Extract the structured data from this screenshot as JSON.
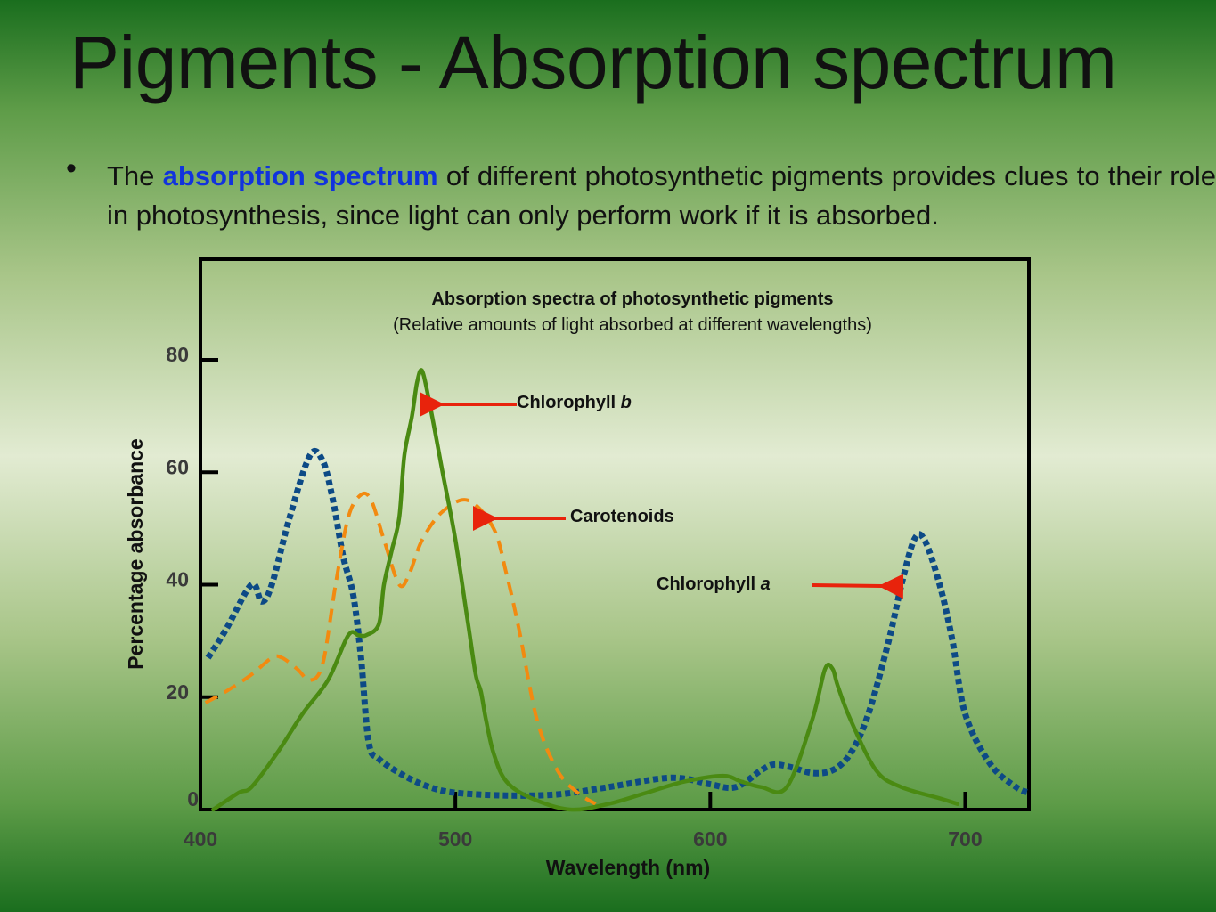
{
  "slide": {
    "title": "Pigments - Absorption spectrum",
    "bullet": {
      "pre": "The",
      "highlight": "absorption spectrum",
      "post": "of different photosynthetic pigments provides clues to their role in photosynthesis, since light can only perform work if it is absorbed.",
      "highlight_color": "#1133dd"
    }
  },
  "chart_data": {
    "type": "line",
    "title": "Absorption spectra of photosynthetic pigments",
    "subtitle": "(Relative amounts of light absorbed at different wavelengths)",
    "xlabel": "Wavelength (nm)",
    "ylabel": "Percentage absorbance",
    "xlim": [
      400,
      725
    ],
    "ylim": [
      0,
      80
    ],
    "xticks": [
      "400",
      "500",
      "600",
      "700"
    ],
    "yticks": [
      "0",
      "20",
      "40",
      "60",
      "80"
    ],
    "grid": false,
    "series": [
      {
        "name": "Chlorophyll a",
        "color": "#0d4a86",
        "style": "dotted",
        "x": [
          403,
          410,
          420,
          424,
          428,
          435,
          443,
          448,
          452,
          456,
          460,
          463,
          466,
          470,
          480,
          490,
          500,
          520,
          540,
          560,
          580,
          590,
          600,
          610,
          620,
          625,
          632,
          640,
          648,
          655,
          662,
          670,
          675,
          680,
          684,
          690,
          695,
          700,
          710,
          720,
          725
        ],
        "y": [
          27,
          32,
          40,
          37,
          40,
          52,
          63,
          62,
          55,
          45,
          38,
          27,
          12,
          9,
          6,
          4,
          3,
          2.5,
          2.7,
          4,
          5.5,
          5.5,
          4.5,
          4,
          7,
          8,
          7.5,
          6.5,
          7,
          10,
          17,
          30,
          40,
          48,
          48,
          40,
          30,
          17,
          8,
          4,
          3
        ]
      },
      {
        "name": "Chlorophyll b",
        "color": "#4a8a12",
        "style": "solid",
        "x": [
          405,
          415,
          420,
          430,
          440,
          450,
          458,
          462,
          465,
          470,
          472,
          475,
          478,
          480,
          483,
          485,
          487,
          490,
          495,
          500,
          505,
          508,
          510,
          512,
          515,
          520,
          530,
          545,
          560,
          575,
          590,
          605,
          612,
          620,
          630,
          640,
          645,
          648,
          650,
          655,
          665,
          675,
          690,
          697
        ],
        "y": [
          0,
          3,
          4,
          10,
          17,
          23,
          31,
          31,
          31,
          33,
          40,
          46,
          52,
          63,
          70,
          76,
          78,
          72,
          60,
          48,
          33,
          24,
          21,
          16,
          10,
          5,
          2,
          0,
          1,
          3,
          5,
          6,
          5,
          4,
          4,
          16,
          25,
          25,
          22,
          16,
          7,
          4,
          2,
          1
        ]
      },
      {
        "name": "Carotenoids",
        "color": "#f28a10",
        "style": "dashed",
        "x": [
          402,
          410,
          420,
          428,
          432,
          438,
          443,
          448,
          453,
          458,
          463,
          467,
          472,
          478,
          482,
          487,
          495,
          505,
          515,
          520,
          525,
          532,
          540,
          548,
          555
        ],
        "y": [
          19,
          21,
          24,
          27,
          27,
          25,
          23,
          26,
          40,
          52,
          56,
          55,
          48,
          40,
          42,
          48,
          53,
          55,
          50,
          42,
          32,
          16,
          7,
          3,
          1
        ]
      }
    ],
    "annotations": [
      {
        "text": "Chlorophyll b",
        "arrow_color": "#e8230c"
      },
      {
        "text": "Carotenoids",
        "arrow_color": "#e8230c"
      },
      {
        "text": "Chlorophyll a",
        "arrow_color": "#e8230c"
      }
    ]
  }
}
